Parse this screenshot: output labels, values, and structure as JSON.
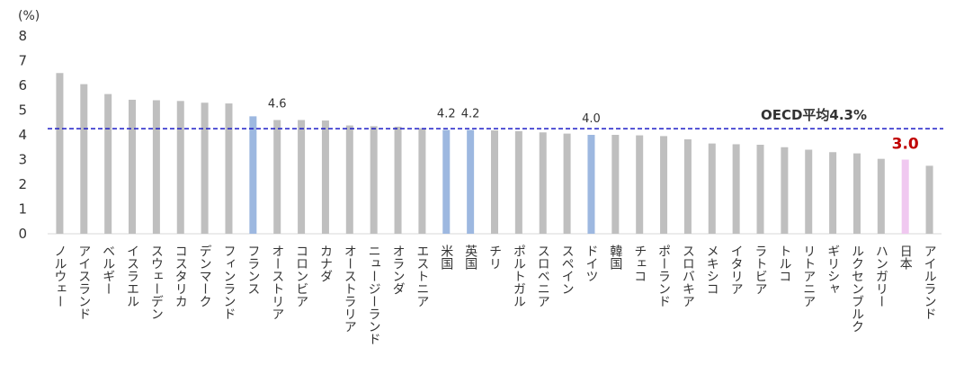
{
  "chart_data": {
    "type": "bar",
    "unit_label": "(%)",
    "ylim": [
      0,
      8
    ],
    "yticks": [
      "0",
      "1",
      "2",
      "3",
      "4",
      "5",
      "6",
      "7",
      "8"
    ],
    "grid": false,
    "categories": [
      "ノルウェー",
      "アイスランド",
      "ベルギー",
      "イスラエル",
      "スウェーデン",
      "コスタリカ",
      "デンマーク",
      "フィンランド",
      "フランス",
      "オーストリア",
      "コロンビア",
      "カナダ",
      "オーストラリア",
      "ニュージーランド",
      "オランダ",
      "エストニア",
      "米国",
      "英国",
      "チリ",
      "ポルトガル",
      "スロベニア",
      "スペイン",
      "ドイツ",
      "韓国",
      "チェコ",
      "ポーランド",
      "スロバキア",
      "メキシコ",
      "イタリア",
      "ラトビア",
      "トルコ",
      "リトアニア",
      "ギリシャ",
      "ルクセンブルク",
      "ハンガリー",
      "日本",
      "アイルランド"
    ],
    "values": [
      6.5,
      6.05,
      5.65,
      5.42,
      5.4,
      5.37,
      5.3,
      5.27,
      4.75,
      4.6,
      4.6,
      4.58,
      4.38,
      4.35,
      4.33,
      4.27,
      4.2,
      4.2,
      4.18,
      4.15,
      4.1,
      4.05,
      4.0,
      4.0,
      3.98,
      3.95,
      3.82,
      3.65,
      3.62,
      3.6,
      3.5,
      3.4,
      3.3,
      3.25,
      3.03,
      3.0,
      2.75
    ],
    "highlights": {
      "フランス": "#9db8e0",
      "米国": "#9db8e0",
      "英国": "#9db8e0",
      "ドイツ": "#9db8e0",
      "日本": "#f0c8f0"
    },
    "bar_color": "#bfbfbf",
    "data_labels": [
      {
        "category": "オーストリア",
        "text": "4.6"
      },
      {
        "category": "米国",
        "text": "4.2"
      },
      {
        "category": "英国",
        "text": "4.2"
      },
      {
        "category": "ドイツ",
        "text": "4.0"
      },
      {
        "category": "日本",
        "text": "3.0",
        "style": "japan"
      }
    ],
    "average": {
      "value": 4.25,
      "label": "OECD平均4.3%",
      "color": "#1f1fc8"
    }
  }
}
